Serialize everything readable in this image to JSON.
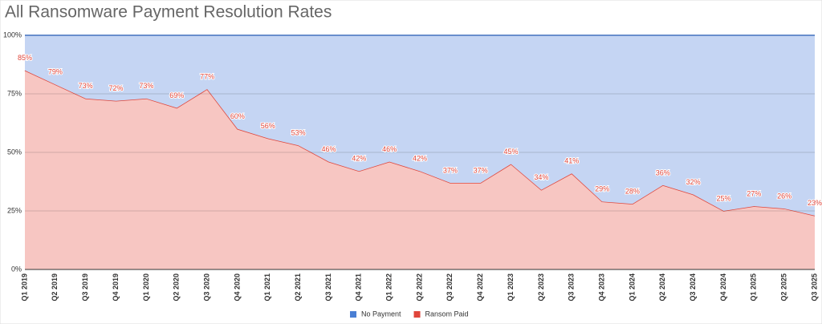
{
  "chart_data": {
    "type": "stacked-area",
    "title": "All Ransomware Payment Resolution Rates",
    "categories": [
      "Q1 2019",
      "Q2 2019",
      "Q3 2019",
      "Q4 2019",
      "Q1 2020",
      "Q2 2020",
      "Q3 2020",
      "Q4 2020",
      "Q1 2021",
      "Q2 2021",
      "Q3 2021",
      "Q4 2021",
      "Q1 2022",
      "Q2 2022",
      "Q3 2022",
      "Q4 2022",
      "Q1 2023",
      "Q2 2023",
      "Q3 2023",
      "Q4 2023",
      "Q1 2024",
      "Q2 2024",
      "Q3 2024",
      "Q4 2024",
      "Q1 2025",
      "Q2 2025",
      "Q3 2025"
    ],
    "series": [
      {
        "name": "Ransom Paid",
        "color": "#e0463b",
        "area_color": "#f7c6c2",
        "values": [
          85,
          79,
          73,
          72,
          73,
          69,
          77,
          60,
          56,
          53,
          46,
          42,
          46,
          42,
          37,
          37,
          45,
          34,
          41,
          29,
          28,
          36,
          32,
          25,
          27,
          26,
          23
        ],
        "value_labels": [
          "85%",
          "79%",
          "73%",
          "72%",
          "73%",
          "69%",
          "77%",
          "60%",
          "56%",
          "53%",
          "46%",
          "42%",
          "46%",
          "42%",
          "37%",
          "37%",
          "45%",
          "34%",
          "41%",
          "29%",
          "28%",
          "36%",
          "32%",
          "25%",
          "27%",
          "26%",
          "23%"
        ]
      },
      {
        "name": "No Payment",
        "color": "#4a7fd4",
        "area_color": "#c5d5f3",
        "values": [
          15,
          21,
          27,
          28,
          27,
          31,
          23,
          40,
          44,
          47,
          54,
          58,
          54,
          58,
          63,
          63,
          55,
          66,
          59,
          71,
          72,
          64,
          68,
          75,
          73,
          74,
          77
        ]
      }
    ],
    "ylim": [
      0,
      100
    ],
    "yticks": [
      {
        "value": 0,
        "label": "0%"
      },
      {
        "value": 25,
        "label": "25%"
      },
      {
        "value": 50,
        "label": "50%"
      },
      {
        "value": 75,
        "label": "75%"
      },
      {
        "value": 100,
        "label": "100%"
      }
    ],
    "grid": true
  }
}
